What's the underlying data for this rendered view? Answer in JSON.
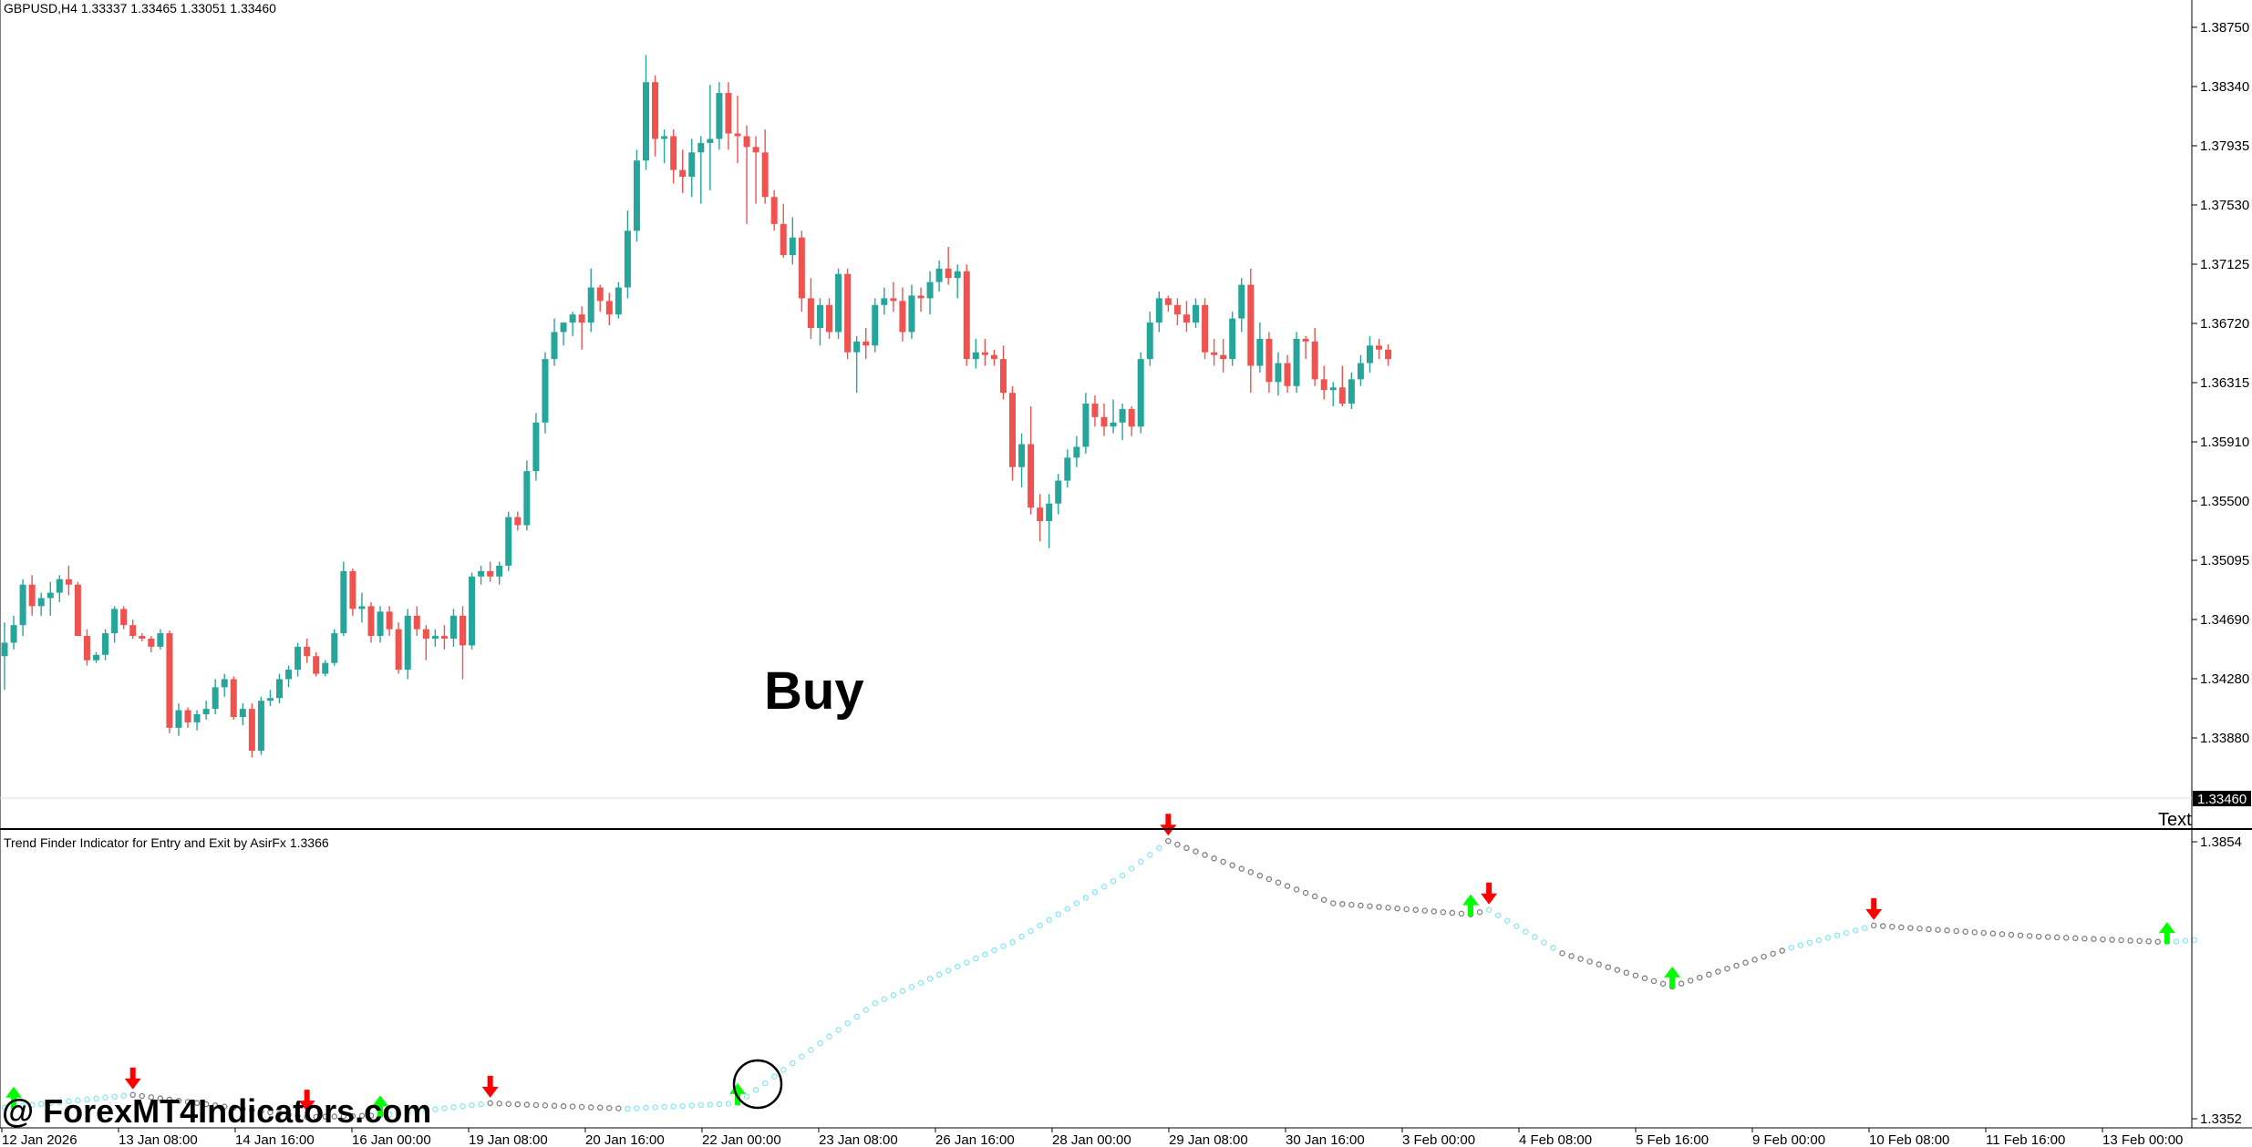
{
  "header": {
    "symbol_line": "GBPUSD,H4  1.33337 1.33465 1.33051 1.33460",
    "indicator_line": "Trend Finder Indicator for Entry and Exit by AsirFx 1.3366"
  },
  "labels": {
    "buy": "Buy",
    "text_object": "Text",
    "watermark": "@ ForexMT4Indicators.com"
  },
  "colors": {
    "bull": "#26a69a",
    "bear": "#ef5350",
    "up_arrow": "#00ff00",
    "down_arrow": "#ff0000",
    "line_up": "#87e6f5",
    "line_down": "#808080",
    "axis": "#000000",
    "background": "#ffffff"
  },
  "price_axis": {
    "ticks": [
      "1.38750",
      "1.38340",
      "1.37935",
      "1.37530",
      "1.37125",
      "1.36720",
      "1.36315",
      "1.35910",
      "1.35500",
      "1.35095",
      "1.34690",
      "1.34280",
      "1.33880"
    ],
    "current": "1.33460"
  },
  "indicator_axis": {
    "ticks": [
      "1.3854",
      "1.3352"
    ]
  },
  "time_axis": {
    "labels": [
      "12 Jan 2026",
      "13 Jan 08:00",
      "14 Jan 16:00",
      "16 Jan 00:00",
      "19 Jan 08:00",
      "20 Jan 16:00",
      "22 Jan 00:00",
      "23 Jan 08:00",
      "26 Jan 16:00",
      "28 Jan 00:00",
      "29 Jan 08:00",
      "30 Jan 16:00",
      "3 Feb 00:00",
      "4 Feb 08:00",
      "5 Feb 16:00",
      "9 Feb 00:00",
      "10 Feb 08:00",
      "11 Feb 16:00",
      "13 Feb 00:00"
    ]
  },
  "chart_data": {
    "type": "candlestick",
    "symbol": "GBPUSD",
    "timeframe": "H4",
    "ohlc": [
      [
        1.3425,
        1.345,
        1.34,
        1.3435
      ],
      [
        1.3435,
        1.3455,
        1.343,
        1.3448
      ],
      [
        1.3448,
        1.3482,
        1.344,
        1.3478
      ],
      [
        1.3478,
        1.3485,
        1.3455,
        1.3462
      ],
      [
        1.3462,
        1.3472,
        1.3455,
        1.3468
      ],
      [
        1.3468,
        1.348,
        1.3455,
        1.3472
      ],
      [
        1.3472,
        1.3485,
        1.3465,
        1.3482
      ],
      [
        1.3482,
        1.3492,
        1.347,
        1.3478
      ],
      [
        1.3478,
        1.348,
        1.344,
        1.344
      ],
      [
        1.344,
        1.3445,
        1.3418,
        1.3422
      ],
      [
        1.3422,
        1.3428,
        1.342,
        1.3426
      ],
      [
        1.3426,
        1.3445,
        1.3422,
        1.3442
      ],
      [
        1.3442,
        1.3462,
        1.3435,
        1.346
      ],
      [
        1.346,
        1.3462,
        1.3445,
        1.3448
      ],
      [
        1.3448,
        1.3452,
        1.3438,
        1.344
      ],
      [
        1.344,
        1.3442,
        1.3436,
        1.3438
      ],
      [
        1.3438,
        1.344,
        1.3428,
        1.3432
      ],
      [
        1.3432,
        1.3445,
        1.343,
        1.3442
      ],
      [
        1.3442,
        1.3444,
        1.3368,
        1.3372
      ],
      [
        1.3372,
        1.339,
        1.3366,
        1.3385
      ],
      [
        1.3385,
        1.3387,
        1.3372,
        1.3376
      ],
      [
        1.3376,
        1.3385,
        1.337,
        1.3382
      ],
      [
        1.3382,
        1.3392,
        1.3378,
        1.3386
      ],
      [
        1.3386,
        1.3408,
        1.3382,
        1.3402
      ],
      [
        1.3402,
        1.3412,
        1.3395,
        1.3408
      ],
      [
        1.3408,
        1.341,
        1.3378,
        1.338
      ],
      [
        1.338,
        1.339,
        1.3374,
        1.3386
      ],
      [
        1.3386,
        1.339,
        1.335,
        1.3355
      ],
      [
        1.3355,
        1.3395,
        1.3352,
        1.3392
      ],
      [
        1.3392,
        1.34,
        1.3388,
        1.3394
      ],
      [
        1.3394,
        1.3412,
        1.339,
        1.3408
      ],
      [
        1.3408,
        1.3418,
        1.3402,
        1.3415
      ],
      [
        1.3415,
        1.3435,
        1.341,
        1.3432
      ],
      [
        1.3432,
        1.3438,
        1.342,
        1.3425
      ],
      [
        1.3425,
        1.3428,
        1.341,
        1.3412
      ],
      [
        1.3412,
        1.3422,
        1.341,
        1.342
      ],
      [
        1.342,
        1.3445,
        1.3418,
        1.3442
      ],
      [
        1.3442,
        1.3495,
        1.344,
        1.3488
      ],
      [
        1.3488,
        1.349,
        1.3455,
        1.346
      ],
      [
        1.346,
        1.3472,
        1.345,
        1.3462
      ],
      [
        1.3462,
        1.3465,
        1.3435,
        1.344
      ],
      [
        1.344,
        1.3462,
        1.3435,
        1.3458
      ],
      [
        1.3458,
        1.3462,
        1.344,
        1.3445
      ],
      [
        1.3445,
        1.345,
        1.3412,
        1.3415
      ],
      [
        1.3415,
        1.346,
        1.3408,
        1.3455
      ],
      [
        1.3455,
        1.3462,
        1.344,
        1.3445
      ],
      [
        1.3445,
        1.3448,
        1.3422,
        1.3438
      ],
      [
        1.3438,
        1.3445,
        1.3432,
        1.344
      ],
      [
        1.344,
        1.3448,
        1.343,
        1.3438
      ],
      [
        1.3438,
        1.346,
        1.3432,
        1.3455
      ],
      [
        1.3455,
        1.3462,
        1.3408,
        1.3433
      ],
      [
        1.3433,
        1.3487,
        1.343,
        1.3484
      ],
      [
        1.3484,
        1.3492,
        1.3478,
        1.3488
      ],
      [
        1.3488,
        1.3495,
        1.348,
        1.3484
      ],
      [
        1.3484,
        1.3495,
        1.3478,
        1.3492
      ],
      [
        1.3492,
        1.3532,
        1.3488,
        1.3528
      ],
      [
        1.3528,
        1.3532,
        1.3518,
        1.3522
      ],
      [
        1.3522,
        1.357,
        1.3518,
        1.3562
      ],
      [
        1.3562,
        1.3605,
        1.3555,
        1.3598
      ],
      [
        1.3598,
        1.365,
        1.359,
        1.3645
      ],
      [
        1.3645,
        1.3675,
        1.364,
        1.3665
      ],
      [
        1.3665,
        1.3672,
        1.3655,
        1.3672
      ],
      [
        1.3672,
        1.368,
        1.3662,
        1.3678
      ],
      [
        1.3678,
        1.3684,
        1.3652,
        1.3672
      ],
      [
        1.3672,
        1.3712,
        1.3665,
        1.3698
      ],
      [
        1.3698,
        1.37,
        1.368,
        1.3688
      ],
      [
        1.3688,
        1.3694,
        1.367,
        1.3678
      ],
      [
        1.3678,
        1.3702,
        1.3675,
        1.3698
      ],
      [
        1.3698,
        1.3755,
        1.369,
        1.374
      ],
      [
        1.374,
        1.38,
        1.3732,
        1.3792
      ],
      [
        1.3792,
        1.387,
        1.3785,
        1.385
      ],
      [
        1.385,
        1.3855,
        1.3795,
        1.3808
      ],
      [
        1.3808,
        1.3815,
        1.379,
        1.381
      ],
      [
        1.381,
        1.3815,
        1.3775,
        1.3785
      ],
      [
        1.3785,
        1.38,
        1.3768,
        1.378
      ],
      [
        1.378,
        1.3808,
        1.3765,
        1.3798
      ],
      [
        1.3798,
        1.381,
        1.376,
        1.3805
      ],
      [
        1.3805,
        1.3848,
        1.377,
        1.3808
      ],
      [
        1.3808,
        1.385,
        1.38,
        1.3842
      ],
      [
        1.3842,
        1.385,
        1.38,
        1.3812
      ],
      [
        1.3812,
        1.384,
        1.379,
        1.381
      ],
      [
        1.381,
        1.3818,
        1.3745,
        1.3802
      ],
      [
        1.3802,
        1.381,
        1.376,
        1.3798
      ],
      [
        1.3798,
        1.3815,
        1.376,
        1.3765
      ],
      [
        1.3765,
        1.377,
        1.374,
        1.3745
      ],
      [
        1.3745,
        1.376,
        1.372,
        1.3722
      ],
      [
        1.3722,
        1.375,
        1.3715,
        1.3735
      ],
      [
        1.3735,
        1.374,
        1.368,
        1.369
      ],
      [
        1.369,
        1.3705,
        1.366,
        1.3668
      ],
      [
        1.3668,
        1.369,
        1.3655,
        1.3685
      ],
      [
        1.3685,
        1.369,
        1.366,
        1.3665
      ],
      [
        1.3665,
        1.3712,
        1.366,
        1.3708
      ],
      [
        1.3708,
        1.3712,
        1.3645,
        1.365
      ],
      [
        1.365,
        1.3662,
        1.362,
        1.3658
      ],
      [
        1.3658,
        1.3668,
        1.3645,
        1.3655
      ],
      [
        1.3655,
        1.369,
        1.365,
        1.3685
      ],
      [
        1.3685,
        1.3698,
        1.3678,
        1.369
      ],
      [
        1.369,
        1.3702,
        1.368,
        1.3688
      ],
      [
        1.3688,
        1.3698,
        1.3658,
        1.3665
      ],
      [
        1.3665,
        1.37,
        1.366,
        1.3692
      ],
      [
        1.3692,
        1.3698,
        1.368,
        1.369
      ],
      [
        1.369,
        1.371,
        1.3678,
        1.3702
      ],
      [
        1.3702,
        1.3718,
        1.3695,
        1.3712
      ],
      [
        1.3712,
        1.3728,
        1.37,
        1.3705
      ],
      [
        1.3705,
        1.3715,
        1.369,
        1.371
      ],
      [
        1.371,
        1.3715,
        1.364,
        1.3645
      ],
      [
        1.3645,
        1.366,
        1.3638,
        1.365
      ],
      [
        1.365,
        1.366,
        1.364,
        1.3648
      ],
      [
        1.3648,
        1.3652,
        1.364,
        1.3645
      ],
      [
        1.3645,
        1.3655,
        1.3615,
        1.362
      ],
      [
        1.362,
        1.3625,
        1.3555,
        1.3565
      ],
      [
        1.3565,
        1.359,
        1.355,
        1.3582
      ],
      [
        1.3582,
        1.361,
        1.353,
        1.3535
      ],
      [
        1.3535,
        1.3545,
        1.351,
        1.3525
      ],
      [
        1.3525,
        1.3545,
        1.3505,
        1.3538
      ],
      [
        1.3538,
        1.356,
        1.353,
        1.3555
      ],
      [
        1.3555,
        1.3578,
        1.355,
        1.3572
      ],
      [
        1.3572,
        1.3588,
        1.3565,
        1.358
      ],
      [
        1.358,
        1.362,
        1.3575,
        1.3612
      ],
      [
        1.3612,
        1.3618,
        1.3595,
        1.3602
      ],
      [
        1.3602,
        1.3612,
        1.3588,
        1.3595
      ],
      [
        1.3595,
        1.3615,
        1.359,
        1.3598
      ],
      [
        1.3598,
        1.3612,
        1.3585,
        1.3608
      ],
      [
        1.3608,
        1.361,
        1.3588,
        1.3595
      ],
      [
        1.3595,
        1.365,
        1.359,
        1.3645
      ],
      [
        1.3645,
        1.368,
        1.364,
        1.3672
      ],
      [
        1.3672,
        1.3695,
        1.3665,
        1.369
      ],
      [
        1.369,
        1.3692,
        1.368,
        1.3685
      ],
      [
        1.3685,
        1.369,
        1.367,
        1.3678
      ],
      [
        1.3678,
        1.3688,
        1.3665,
        1.3672
      ],
      [
        1.3672,
        1.369,
        1.3668,
        1.3685
      ],
      [
        1.3685,
        1.369,
        1.3645,
        1.365
      ],
      [
        1.365,
        1.366,
        1.364,
        1.3648
      ],
      [
        1.3648,
        1.366,
        1.3635,
        1.3645
      ],
      [
        1.3645,
        1.368,
        1.364,
        1.3675
      ],
      [
        1.3675,
        1.3705,
        1.3665,
        1.37
      ],
      [
        1.37,
        1.3712,
        1.362,
        1.364
      ],
      [
        1.364,
        1.3672,
        1.3635,
        1.366
      ],
      [
        1.366,
        1.3665,
        1.362,
        1.3628
      ],
      [
        1.3628,
        1.365,
        1.3618,
        1.3642
      ],
      [
        1.3642,
        1.3648,
        1.362,
        1.3625
      ],
      [
        1.3625,
        1.3665,
        1.362,
        1.366
      ],
      [
        1.366,
        1.3662,
        1.3645,
        1.3658
      ],
      [
        1.3658,
        1.3668,
        1.3625,
        1.363
      ],
      [
        1.363,
        1.364,
        1.3615,
        1.3622
      ],
      [
        1.3622,
        1.3628,
        1.361,
        1.3624
      ],
      [
        1.3624,
        1.364,
        1.361,
        1.3612
      ],
      [
        1.3612,
        1.3635,
        1.3608,
        1.363
      ],
      [
        1.363,
        1.3648,
        1.3625,
        1.3642
      ],
      [
        1.3642,
        1.3662,
        1.3635,
        1.3655
      ],
      [
        1.3655,
        1.366,
        1.3645,
        1.3652
      ],
      [
        1.3652,
        1.3656,
        1.364,
        1.3645
      ]
    ],
    "arrows": [
      {
        "bar": 1,
        "dir": "up"
      },
      {
        "bar": 14,
        "dir": "down"
      },
      {
        "bar": 33,
        "dir": "down"
      },
      {
        "bar": 41,
        "dir": "up"
      },
      {
        "bar": 53,
        "dir": "down"
      },
      {
        "bar": 80,
        "dir": "up"
      },
      {
        "bar": 127,
        "dir": "down"
      },
      {
        "bar": 160,
        "dir": "up"
      },
      {
        "bar": 162,
        "dir": "down"
      },
      {
        "bar": 182,
        "dir": "up"
      },
      {
        "bar": 204,
        "dir": "down"
      },
      {
        "bar": 236,
        "dir": "up"
      }
    ],
    "indicator_line": [
      [
        0,
        1.3372,
        "up"
      ],
      [
        14,
        1.3395,
        "down"
      ],
      [
        33,
        1.3355,
        "down"
      ],
      [
        41,
        1.3358,
        "up"
      ],
      [
        53,
        1.338,
        "down"
      ],
      [
        68,
        1.337,
        "up"
      ],
      [
        80,
        1.338,
        "up"
      ],
      [
        95,
        1.356,
        "up"
      ],
      [
        110,
        1.367,
        "up"
      ],
      [
        122,
        1.379,
        "up"
      ],
      [
        127,
        1.3852,
        "down"
      ],
      [
        145,
        1.374,
        "down"
      ],
      [
        160,
        1.372,
        "down"
      ],
      [
        162,
        1.3728,
        "up"
      ],
      [
        170,
        1.365,
        "down"
      ],
      [
        182,
        1.359,
        "down"
      ],
      [
        195,
        1.366,
        "up"
      ],
      [
        204,
        1.37,
        "down"
      ],
      [
        222,
        1.368,
        "down"
      ],
      [
        236,
        1.367,
        "up"
      ],
      [
        240,
        1.3675,
        "up"
      ]
    ],
    "indicator_range": [
      1.3352,
      1.3854
    ],
    "price_range": [
      1.3324,
      1.3896
    ]
  }
}
